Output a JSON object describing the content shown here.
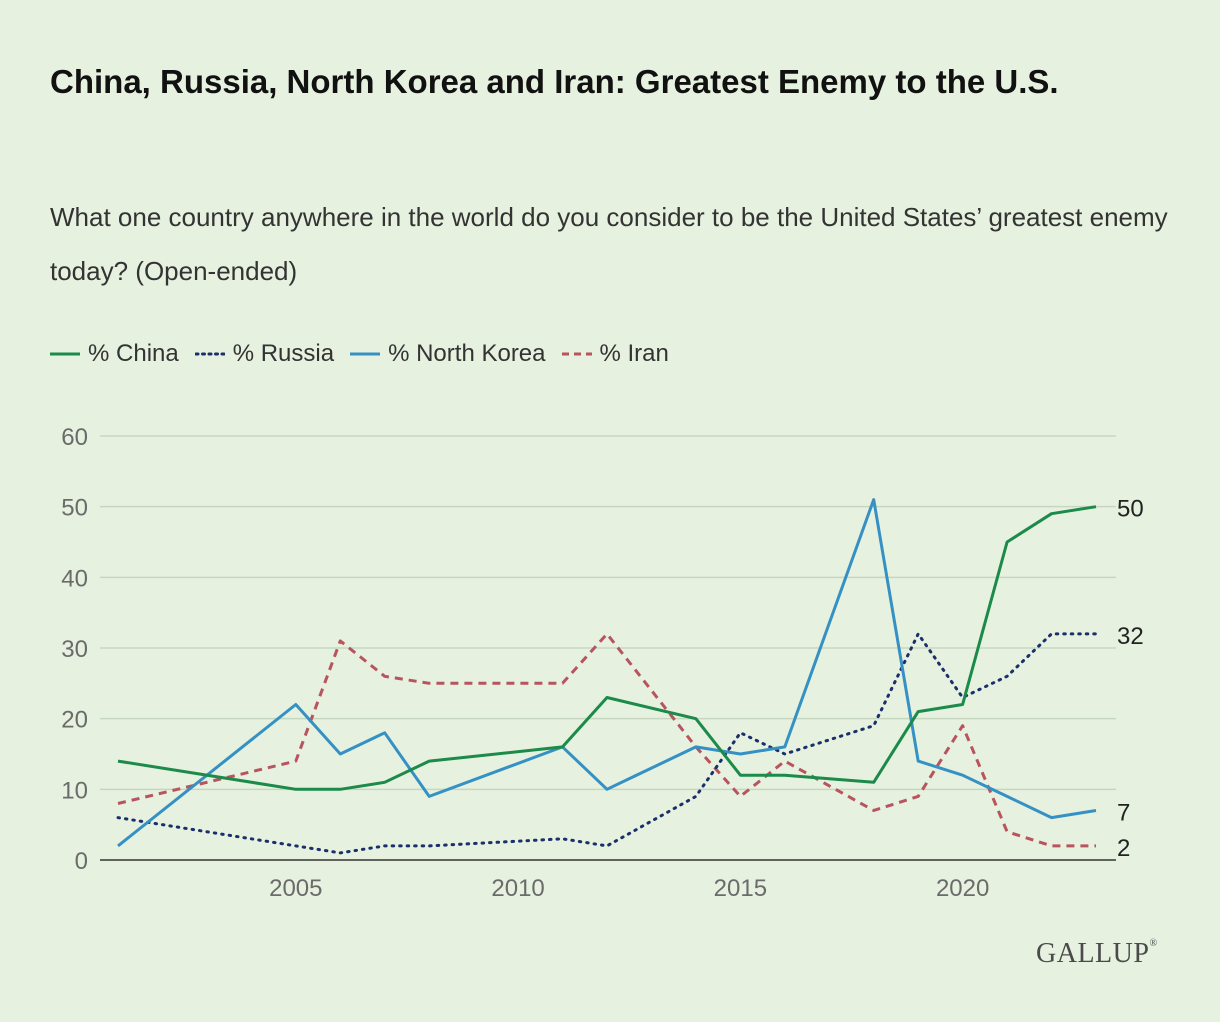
{
  "title": "China, Russia, North Korea and Iran: Greatest Enemy to the U.S.",
  "subtitle": "What one country anywhere in the world do you consider to be the United States’ greatest enemy today? (Open-ended)",
  "brand": "GALLUP",
  "colors": {
    "background": "#e6f1df",
    "china": "#1b8a4a",
    "russia": "#1a2f6b",
    "north_korea": "#3591c4",
    "iran": "#b8545e",
    "grid": "#c6d7c0",
    "tick_text": "#6b6b6b"
  },
  "chart_data": {
    "type": "line",
    "title": "China, Russia, North Korea and Iran: Greatest Enemy to the U.S.",
    "xlabel": "",
    "ylabel": "",
    "xlim": [
      2001,
      2023
    ],
    "ylim": [
      0,
      60
    ],
    "x_ticks": [
      2005,
      2010,
      2015,
      2020
    ],
    "y_ticks": [
      0,
      10,
      20,
      30,
      40,
      50,
      60
    ],
    "legend_position": "top-left",
    "series": [
      {
        "name": "% China",
        "style": "solid",
        "color_key": "china",
        "points": [
          [
            2001,
            14
          ],
          [
            2005,
            10
          ],
          [
            2006,
            10
          ],
          [
            2007,
            11
          ],
          [
            2008,
            14
          ],
          [
            2011,
            16
          ],
          [
            2012,
            23
          ],
          [
            2014,
            20
          ],
          [
            2015,
            12
          ],
          [
            2016,
            12
          ],
          [
            2018,
            11
          ],
          [
            2019,
            21
          ],
          [
            2020,
            22
          ],
          [
            2021,
            45
          ],
          [
            2022,
            49
          ],
          [
            2023,
            50
          ]
        ],
        "end_label": "50"
      },
      {
        "name": "% Russia",
        "style": "dotted",
        "color_key": "russia",
        "points": [
          [
            2001,
            6
          ],
          [
            2005,
            2
          ],
          [
            2006,
            1
          ],
          [
            2007,
            2
          ],
          [
            2008,
            2
          ],
          [
            2011,
            3
          ],
          [
            2012,
            2
          ],
          [
            2014,
            9
          ],
          [
            2015,
            18
          ],
          [
            2016,
            15
          ],
          [
            2018,
            19
          ],
          [
            2019,
            32
          ],
          [
            2020,
            23
          ],
          [
            2021,
            26
          ],
          [
            2022,
            32
          ],
          [
            2023,
            32
          ]
        ],
        "end_label": "32"
      },
      {
        "name": "% North Korea",
        "style": "solid",
        "color_key": "north_korea",
        "points": [
          [
            2001,
            2
          ],
          [
            2005,
            22
          ],
          [
            2006,
            15
          ],
          [
            2007,
            18
          ],
          [
            2008,
            9
          ],
          [
            2011,
            16
          ],
          [
            2012,
            10
          ],
          [
            2014,
            16
          ],
          [
            2015,
            15
          ],
          [
            2016,
            16
          ],
          [
            2018,
            51
          ],
          [
            2019,
            14
          ],
          [
            2020,
            12
          ],
          [
            2021,
            9
          ],
          [
            2022,
            6
          ],
          [
            2023,
            7
          ]
        ],
        "end_label": "7"
      },
      {
        "name": "% Iran",
        "style": "dashed",
        "color_key": "iran",
        "points": [
          [
            2001,
            8
          ],
          [
            2005,
            14
          ],
          [
            2006,
            31
          ],
          [
            2007,
            26
          ],
          [
            2008,
            25
          ],
          [
            2011,
            25
          ],
          [
            2012,
            32
          ],
          [
            2014,
            16
          ],
          [
            2015,
            9
          ],
          [
            2016,
            14
          ],
          [
            2018,
            7
          ],
          [
            2019,
            9
          ],
          [
            2020,
            19
          ],
          [
            2021,
            4
          ],
          [
            2022,
            2
          ],
          [
            2023,
            2
          ]
        ],
        "end_label": "2"
      }
    ]
  }
}
